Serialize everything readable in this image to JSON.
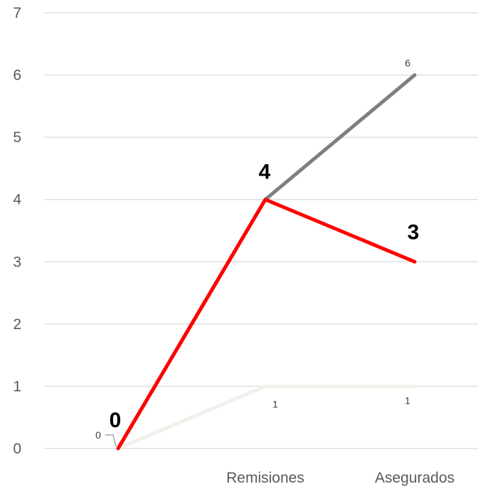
{
  "chart_data": {
    "type": "line",
    "categories": [
      "",
      "Remisiones",
      "Asegurados"
    ],
    "ylim": [
      0,
      7
    ],
    "yticks": [
      0,
      1,
      2,
      3,
      4,
      5,
      6,
      7
    ],
    "grid": true,
    "series": [
      {
        "color": "#7f7f7f",
        "values": [
          0,
          4,
          6
        ],
        "labels": [
          "0",
          "",
          "6"
        ]
      },
      {
        "color": "#f2f0eb",
        "values": [
          0,
          1,
          1
        ],
        "labels": [
          "",
          "1",
          "1"
        ]
      },
      {
        "color": "#ff0000",
        "values": [
          0,
          4,
          3
        ],
        "labels": [
          "0",
          "4",
          "3"
        ]
      }
    ]
  }
}
